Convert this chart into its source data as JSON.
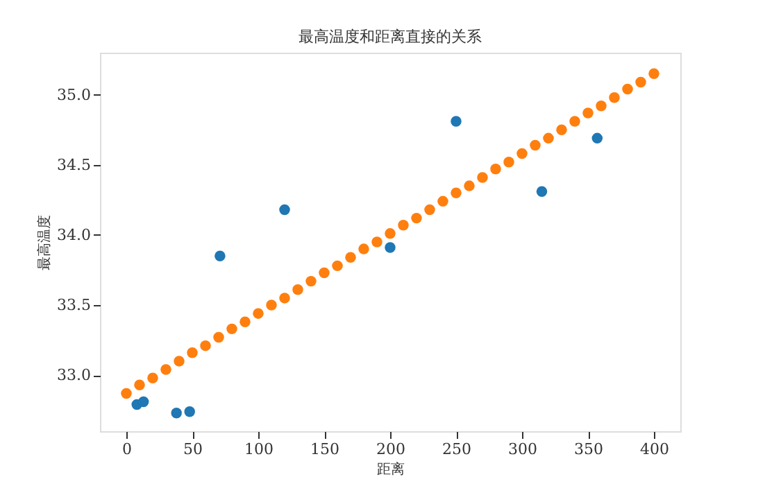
{
  "chart_data": {
    "type": "scatter",
    "title": "最高温度和距离直接的关系",
    "xlabel": "距离",
    "ylabel": "最高温度",
    "xlim": [
      -20,
      420
    ],
    "xticks": [
      0,
      50,
      100,
      150,
      200,
      250,
      300,
      350,
      400
    ],
    "ylim": [
      32.6,
      35.3
    ],
    "yticks": [
      {
        "value": 33,
        "label": "33.0"
      },
      33.5,
      {
        "value": 34,
        "label": "34.0"
      },
      34.5,
      {
        "value": 35,
        "label": "35.0"
      }
    ],
    "grid": false,
    "marker": "circle",
    "series": [
      {
        "color": "#1f77b4",
        "x": [
          8,
          13,
          38,
          48,
          71,
          120,
          200,
          250,
          315,
          357
        ],
        "values": [
          32.79,
          32.81,
          32.73,
          32.74,
          33.85,
          34.18,
          33.91,
          34.81,
          34.31,
          34.69
        ]
      },
      {
        "color": "#ff7f0e",
        "x": [
          0,
          10,
          20,
          30,
          40,
          50,
          60,
          70,
          80,
          90,
          100,
          110,
          120,
          130,
          140,
          150,
          160,
          170,
          180,
          190,
          200,
          210,
          220,
          230,
          240,
          250,
          260,
          270,
          280,
          290,
          300,
          310,
          320,
          330,
          340,
          350,
          360,
          370,
          380,
          390,
          400
        ],
        "values": [
          32.87,
          32.93,
          32.98,
          33.04,
          33.1,
          33.16,
          33.21,
          33.27,
          33.33,
          33.38,
          33.44,
          33.5,
          33.55,
          33.61,
          33.67,
          33.73,
          33.78,
          33.84,
          33.9,
          33.95,
          34.01,
          34.07,
          34.12,
          34.18,
          34.24,
          34.3,
          34.35,
          34.41,
          34.47,
          34.52,
          34.58,
          34.64,
          34.69,
          34.75,
          34.81,
          34.87,
          34.92,
          34.98,
          35.04,
          35.09,
          35.15
        ]
      }
    ]
  }
}
